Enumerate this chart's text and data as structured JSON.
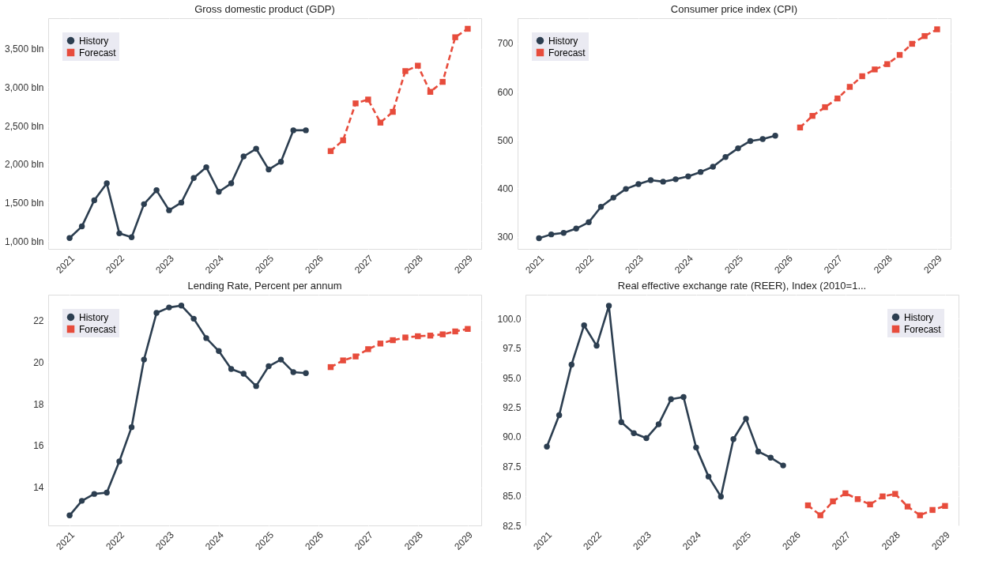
{
  "chart_data": [
    {
      "type": "line",
      "title": "Gross domestic product (GDP)",
      "xlim": [
        "2020-07-28",
        "2029-04-10"
      ],
      "xticks": [
        "2021",
        "2022",
        "2023",
        "2024",
        "2025",
        "2026",
        "2027",
        "2028",
        "2029"
      ],
      "ylim": [
        898,
        3898
      ],
      "yticks": [
        {
          "value": 1000,
          "label": "1,000 bln"
        },
        {
          "value": 1500,
          "label": "1,500 bln"
        },
        {
          "value": 2000,
          "label": "2,000 bln"
        },
        {
          "value": 2500,
          "label": "2,500 bln"
        },
        {
          "value": 3000,
          "label": "3,000 bln"
        },
        {
          "value": 3500,
          "label": "3,500 bln"
        }
      ],
      "grid": true,
      "legend": "top left",
      "series": [
        {
          "name": "History",
          "color": "#2c3e50",
          "marker": "circle",
          "line_style": "solid",
          "x": [
            "2021-01",
            "2021-04",
            "2021-07",
            "2021-10",
            "2022-01",
            "2022-04",
            "2022-07",
            "2022-10",
            "2023-01",
            "2023-04",
            "2023-07",
            "2023-10",
            "2024-01",
            "2024-04",
            "2024-07",
            "2024-10",
            "2025-01",
            "2025-04",
            "2025-07",
            "2025-10"
          ],
          "values": [
            1040,
            1190,
            1530,
            1750,
            1100,
            1050,
            1480,
            1660,
            1400,
            1500,
            1820,
            1960,
            1640,
            1750,
            2100,
            2200,
            1930,
            2030,
            2440,
            2440
          ]
        },
        {
          "name": "Forecast",
          "color": "#e74c3c",
          "marker": "square",
          "line_style": "dashed",
          "x": [
            "2026-04",
            "2026-07",
            "2026-10",
            "2027-01",
            "2027-04",
            "2027-07",
            "2027-10",
            "2028-01",
            "2028-04",
            "2028-07",
            "2028-10",
            "2029-01"
          ],
          "values": [
            2170,
            2310,
            2790,
            2840,
            2540,
            2680,
            3210,
            3280,
            2940,
            3070,
            3650,
            3760
          ]
        }
      ]
    },
    {
      "type": "line",
      "title": "Consumer price index (CPI)",
      "xlim": [
        "2020-07-28",
        "2029-04-10"
      ],
      "xticks": [
        "2021",
        "2022",
        "2023",
        "2024",
        "2025",
        "2026",
        "2027",
        "2028",
        "2029"
      ],
      "ylim": [
        275,
        752
      ],
      "yticks": [
        300,
        400,
        500,
        600,
        700
      ],
      "grid": true,
      "legend": "top left",
      "series": [
        {
          "name": "History",
          "color": "#2c3e50",
          "marker": "circle",
          "line_style": "solid",
          "x": [
            "2021-01",
            "2021-04",
            "2021-07",
            "2021-10",
            "2022-01",
            "2022-04",
            "2022-07",
            "2022-10",
            "2023-01",
            "2023-04",
            "2023-07",
            "2023-10",
            "2024-01",
            "2024-04",
            "2024-07",
            "2024-10",
            "2025-01",
            "2025-04",
            "2025-07",
            "2025-10"
          ],
          "values": [
            297,
            305,
            308,
            317,
            330,
            362,
            381,
            399,
            409,
            417,
            414,
            419,
            425,
            434,
            445,
            465,
            483,
            498,
            502,
            509
          ]
        },
        {
          "name": "Forecast",
          "color": "#e74c3c",
          "marker": "square",
          "line_style": "dashed",
          "x": [
            "2026-04",
            "2026-07",
            "2026-10",
            "2027-01",
            "2027-04",
            "2027-07",
            "2027-10",
            "2028-01",
            "2028-04",
            "2028-07",
            "2028-10",
            "2029-01"
          ],
          "values": [
            526,
            550,
            568,
            586,
            610,
            632,
            646,
            657,
            676,
            699,
            715,
            729
          ]
        }
      ]
    },
    {
      "type": "line",
      "title": "Lending Rate, Percent per annum",
      "xlim": [
        "2020-07-28",
        "2029-04-10"
      ],
      "xticks": [
        "2021",
        "2022",
        "2023",
        "2024",
        "2025",
        "2026",
        "2027",
        "2028",
        "2029"
      ],
      "ylim": [
        12.17,
        23.23
      ],
      "yticks": [
        14,
        16,
        18,
        20,
        22
      ],
      "grid": true,
      "legend": "top left",
      "series": [
        {
          "name": "History",
          "color": "#2c3e50",
          "marker": "circle",
          "line_style": "solid",
          "x": [
            "2021-01",
            "2021-04",
            "2021-07",
            "2021-10",
            "2022-01",
            "2022-04",
            "2022-07",
            "2022-10",
            "2023-01",
            "2023-04",
            "2023-07",
            "2023-10",
            "2024-01",
            "2024-04",
            "2024-07",
            "2024-10",
            "2025-01",
            "2025-04",
            "2025-07",
            "2025-10"
          ],
          "values": [
            12.65,
            13.35,
            13.68,
            13.74,
            15.24,
            16.88,
            20.12,
            22.36,
            22.62,
            22.71,
            22.08,
            21.15,
            20.53,
            19.67,
            19.44,
            18.85,
            19.8,
            20.12,
            19.52,
            19.47
          ]
        },
        {
          "name": "Forecast",
          "color": "#e74c3c",
          "marker": "square",
          "line_style": "dashed",
          "x": [
            "2026-04",
            "2026-07",
            "2026-10",
            "2027-01",
            "2027-04",
            "2027-07",
            "2027-10",
            "2028-01",
            "2028-04",
            "2028-07",
            "2028-10",
            "2029-01"
          ],
          "values": [
            19.76,
            20.08,
            20.27,
            20.62,
            20.89,
            21.05,
            21.18,
            21.24,
            21.27,
            21.33,
            21.47,
            21.59
          ]
        }
      ]
    },
    {
      "type": "line",
      "title": "Real effective exchange rate (REER), Index (2010=1...",
      "xlim": [
        "2020-07-28",
        "2029-04-10"
      ],
      "xticks": [
        "2021",
        "2022",
        "2023",
        "2024",
        "2025",
        "2026",
        "2027",
        "2028",
        "2029"
      ],
      "ylim": [
        82.5,
        102.04
      ],
      "yticks": [
        {
          "value": 82.5,
          "label": "82.5"
        },
        {
          "value": 85,
          "label": "85.0"
        },
        {
          "value": 87.5,
          "label": "87.5"
        },
        {
          "value": 90,
          "label": "90.0"
        },
        {
          "value": 92.5,
          "label": "92.5"
        },
        {
          "value": 95,
          "label": "95.0"
        },
        {
          "value": 97.5,
          "label": "97.5"
        },
        {
          "value": 100,
          "label": "100.0"
        }
      ],
      "grid": true,
      "legend": "top right",
      "series": [
        {
          "name": "History",
          "color": "#2c3e50",
          "marker": "circle",
          "line_style": "solid",
          "x": [
            "2021-01",
            "2021-04",
            "2021-07",
            "2021-10",
            "2022-01",
            "2022-04",
            "2022-07",
            "2022-10",
            "2023-01",
            "2023-04",
            "2023-07",
            "2023-10",
            "2024-01",
            "2024-04",
            "2024-07",
            "2024-10",
            "2025-01",
            "2025-04",
            "2025-07",
            "2025-10"
          ],
          "values": [
            89.18,
            91.83,
            96.12,
            99.45,
            97.72,
            101.1,
            91.25,
            90.31,
            89.89,
            91.07,
            93.19,
            93.37,
            89.1,
            86.64,
            84.94,
            89.81,
            91.54,
            88.76,
            88.24,
            87.58
          ]
        },
        {
          "name": "Forecast",
          "color": "#e74c3c",
          "marker": "square",
          "line_style": "dashed",
          "x": [
            "2026-04",
            "2026-07",
            "2026-10",
            "2027-01",
            "2027-04",
            "2027-07",
            "2027-10",
            "2028-01",
            "2028-04",
            "2028-07",
            "2028-10",
            "2029-01"
          ],
          "values": [
            84.2,
            83.36,
            84.54,
            85.22,
            84.73,
            84.28,
            84.96,
            85.17,
            84.1,
            83.36,
            83.81,
            84.15
          ]
        }
      ]
    }
  ]
}
